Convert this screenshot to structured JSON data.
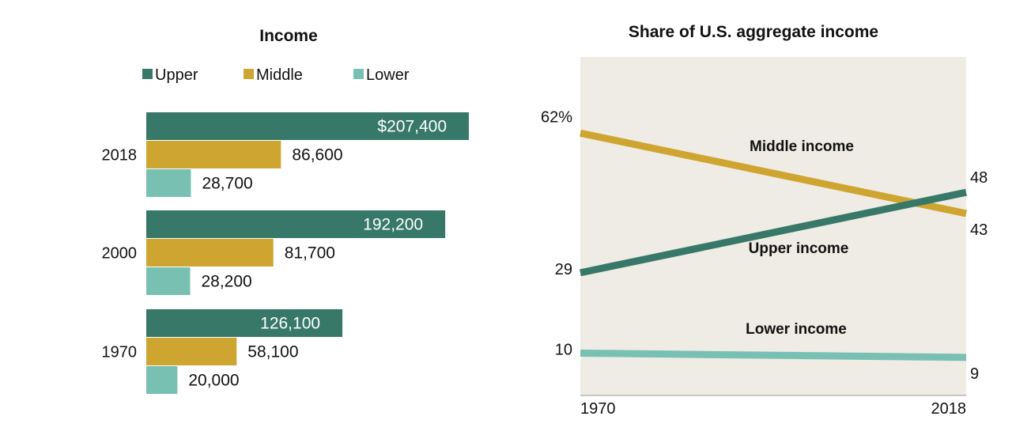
{
  "chart_data": [
    {
      "type": "bar",
      "orientation": "horizontal",
      "title": "Income",
      "categories": [
        "2018",
        "2000",
        "1970"
      ],
      "series": [
        {
          "name": "Upper",
          "values": [
            207400,
            192200,
            126100
          ],
          "labels": [
            "$207,400",
            "192,200",
            "126,100"
          ],
          "color": "#377868"
        },
        {
          "name": "Middle",
          "values": [
            86600,
            81700,
            58100
          ],
          "labels": [
            "86,600",
            "81,700",
            "58,100"
          ],
          "color": "#cfa531"
        },
        {
          "name": "Lower",
          "values": [
            28700,
            28200,
            20000
          ],
          "labels": [
            "28,700",
            "28,200",
            "20,000"
          ],
          "color": "#78c0b1"
        }
      ],
      "legend": "top",
      "xlim": [
        0,
        207400
      ],
      "grid": false
    },
    {
      "type": "line",
      "title": "Share of U.S. aggregate income",
      "x": [
        "1970",
        "2018"
      ],
      "series": [
        {
          "name": "Middle income",
          "values": [
            62,
            43
          ],
          "labels": [
            "62%",
            "43"
          ],
          "color": "#cfa531"
        },
        {
          "name": "Upper income",
          "values": [
            29,
            48
          ],
          "labels": [
            "29",
            "48"
          ],
          "color": "#377868"
        },
        {
          "name": "Lower income",
          "values": [
            10,
            9
          ],
          "labels": [
            "10",
            "9"
          ],
          "color": "#78c0b1"
        }
      ],
      "ylim": [
        0,
        80
      ],
      "background": "#efece5",
      "grid": false
    }
  ]
}
